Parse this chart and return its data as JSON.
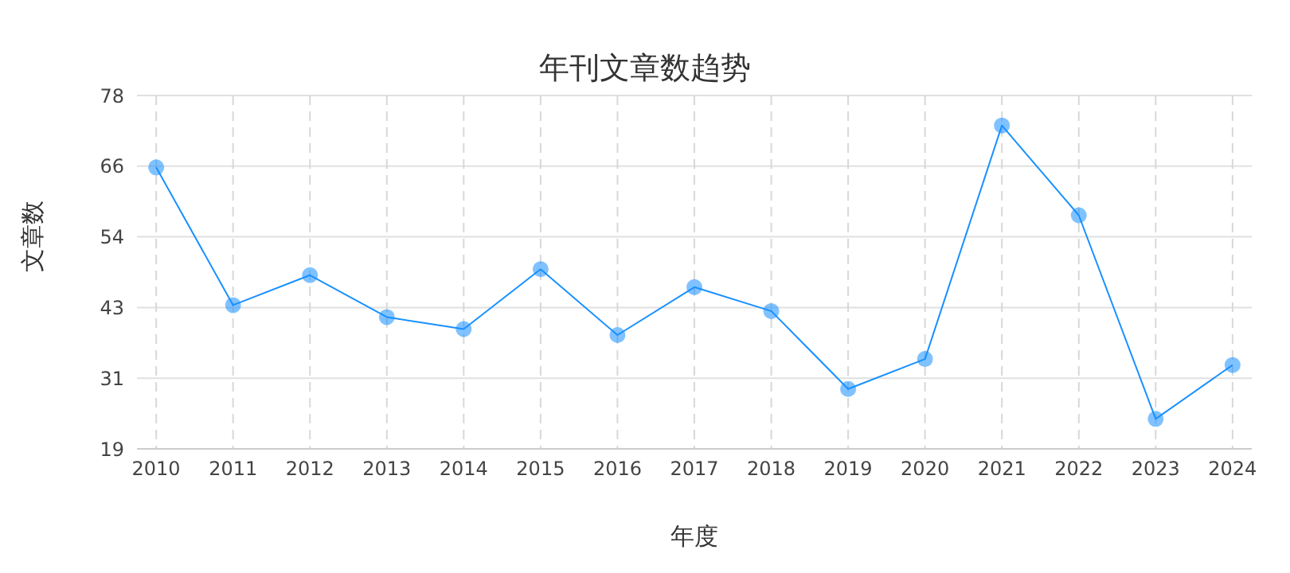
{
  "chart_data": {
    "type": "line",
    "title": "年刊文章数趋势",
    "xlabel": "年度",
    "ylabel": "文章数",
    "categories": [
      "2010",
      "2011",
      "2012",
      "2013",
      "2014",
      "2015",
      "2016",
      "2017",
      "2018",
      "2019",
      "2020",
      "2021",
      "2022",
      "2023",
      "2024"
    ],
    "series": [
      {
        "color": "#1890ff",
        "values": [
          66,
          43,
          48,
          41,
          39,
          49,
          38,
          46,
          42,
          29,
          34,
          73,
          58,
          24,
          33
        ]
      }
    ],
    "ylim": [
      19,
      78
    ],
    "yticks": [
      19,
      {
        "value": 30.8,
        "label": "31"
      },
      {
        "value": 42.6,
        "label": "43"
      },
      {
        "value": 54.4,
        "label": "54"
      },
      {
        "value": 66.2,
        "label": "66"
      },
      78
    ],
    "grid": true,
    "marker": "circle",
    "line_style": "solid",
    "legend": false
  }
}
